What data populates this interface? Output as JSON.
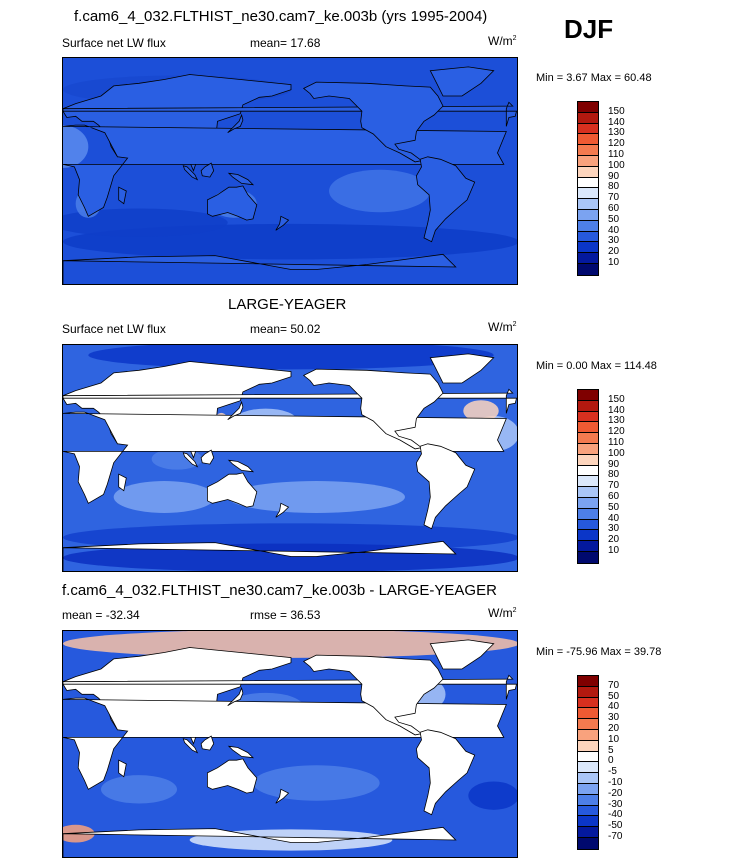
{
  "season": "DJF",
  "panels": [
    {
      "title": "f.cam6_4_032.FLTHIST_ne30.cam7_ke.003b (yrs 1995-2004)",
      "left_label": "Surface net LW flux",
      "stat_label": "mean=  17.68",
      "units_base": "W/m",
      "units_exp": "2",
      "minmax": "Min =   3.67 Max =  60.48",
      "style": "cntl",
      "colorbar": {
        "labels": [
          "150",
          "140",
          "130",
          "120",
          "110",
          "100",
          "90",
          "80",
          "70",
          "60",
          "50",
          "40",
          "30",
          "20",
          "10"
        ],
        "colors": [
          "#7f0000",
          "#b2190f",
          "#d7301f",
          "#ef5a33",
          "#f47a4f",
          "#f9a27d",
          "#fdd5bd",
          "#ffffff",
          "#dbe8fb",
          "#aac6f7",
          "#7ba3f1",
          "#4d7fe8",
          "#2659dd",
          "#0b36c8",
          "#04199e",
          "#00096e"
        ]
      }
    },
    {
      "title": "LARGE-YEAGER",
      "left_label": "Surface net LW flux",
      "stat_label": "mean=  50.02",
      "units_base": "W/m",
      "units_exp": "2",
      "minmax": "Min =   0.00 Max = 114.48",
      "style": "obs",
      "colorbar": {
        "labels": [
          "150",
          "140",
          "130",
          "120",
          "110",
          "100",
          "90",
          "80",
          "70",
          "60",
          "50",
          "40",
          "30",
          "20",
          "10"
        ],
        "colors": [
          "#7f0000",
          "#b2190f",
          "#d7301f",
          "#ef5a33",
          "#f47a4f",
          "#f9a27d",
          "#fdd5bd",
          "#ffffff",
          "#dbe8fb",
          "#aac6f7",
          "#7ba3f1",
          "#4d7fe8",
          "#2659dd",
          "#0b36c8",
          "#04199e",
          "#00096e"
        ]
      }
    },
    {
      "title": "f.cam6_4_032.FLTHIST_ne30.cam7_ke.003b - LARGE-YEAGER",
      "left_label": "mean = -32.34",
      "stat_label": "rmse =  36.53",
      "units_base": "W/m",
      "units_exp": "2",
      "minmax": "Min = -75.96 Max =  39.78",
      "style": "diff",
      "colorbar": {
        "labels": [
          "70",
          "50",
          "40",
          "30",
          "20",
          "10",
          "5",
          "0",
          "-5",
          "-10",
          "-20",
          "-30",
          "-40",
          "-50",
          "-70"
        ],
        "colors": [
          "#7f0000",
          "#b2190f",
          "#d7301f",
          "#ef5a33",
          "#f47a4f",
          "#f9a27d",
          "#fdd5bd",
          "#ffffff",
          "#dbe8fb",
          "#aac6f7",
          "#7ba3f1",
          "#4d7fe8",
          "#2659dd",
          "#0b36c8",
          "#04199e",
          "#00096e"
        ]
      }
    }
  ]
}
